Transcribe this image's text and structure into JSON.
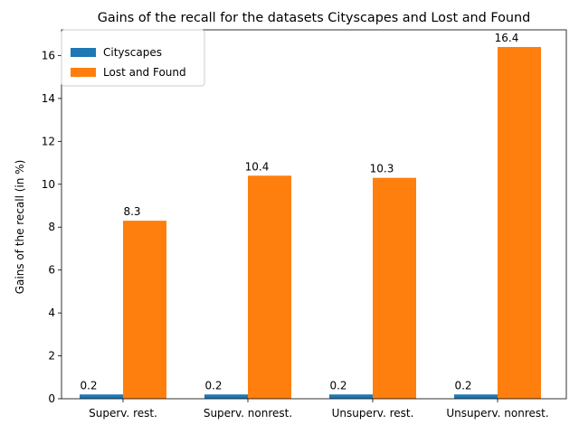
{
  "chart_data": {
    "type": "bar",
    "title": "Gains of the recall for the datasets Cityscapes and Lost and Found",
    "xlabel": "",
    "ylabel": "Gains of the recall (in %)",
    "categories": [
      "Superv. rest.",
      "Superv. nonrest.",
      "Unsuperv. rest.",
      "Unsuperv. nonrest."
    ],
    "series": [
      {
        "name": "Cityscapes",
        "values": [
          0.2,
          0.2,
          0.2,
          0.2
        ],
        "color": "#1f77b4",
        "labels": [
          "0.2",
          "0.2",
          "0.2",
          "0.2"
        ]
      },
      {
        "name": "Lost and Found",
        "values": [
          8.3,
          10.4,
          10.3,
          16.4
        ],
        "color": "#ff7f0e",
        "labels": [
          "8.3",
          "10.4",
          "10.3",
          "16.4"
        ]
      }
    ],
    "ylim": [
      0,
      17.2
    ],
    "yticks": [
      0,
      2,
      4,
      6,
      8,
      10,
      12,
      14,
      16
    ],
    "ytick_labels": [
      "0",
      "2",
      "4",
      "6",
      "8",
      "10",
      "12",
      "14",
      "16"
    ],
    "grid": false,
    "legend_position": "upper left"
  }
}
